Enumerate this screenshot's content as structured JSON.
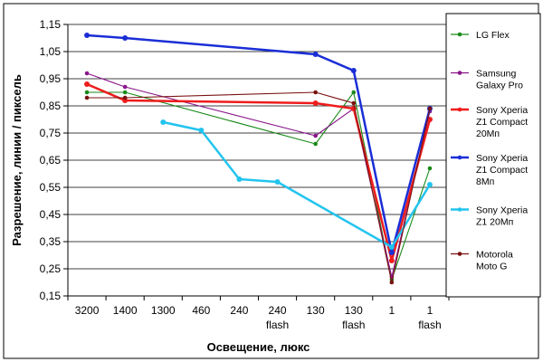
{
  "chart_data": {
    "type": "line",
    "title": "",
    "xlabel": "Освещение, люкс",
    "ylabel": "Разрешение, линии / пиксель",
    "categories": [
      [
        "3200"
      ],
      [
        "1400"
      ],
      [
        "1300"
      ],
      [
        "460"
      ],
      [
        "240"
      ],
      [
        "240",
        "flash"
      ],
      [
        "130"
      ],
      [
        "130",
        "flash"
      ],
      [
        "1"
      ],
      [
        "1",
        "flash"
      ]
    ],
    "ylim": [
      0.15,
      1.15
    ],
    "yticks": [
      "0,15",
      "0,25",
      "0,35",
      "0,45",
      "0,55",
      "0,65",
      "0,75",
      "0,85",
      "0,95",
      "1,05",
      "1,15"
    ],
    "grid": "horizontal",
    "legend_position": "right",
    "series": [
      {
        "name_lines": [
          "LG Flex"
        ],
        "color": "#1a8a1a",
        "values": [
          0.9,
          0.9,
          null,
          null,
          null,
          null,
          0.71,
          0.9,
          0.21,
          0.62
        ]
      },
      {
        "name_lines": [
          "Samsung",
          "Galaxy Pro"
        ],
        "color": "#8a158a",
        "values": [
          0.97,
          0.92,
          null,
          null,
          null,
          null,
          0.74,
          0.84,
          0.22,
          0.83
        ]
      },
      {
        "name_lines": [
          "Sony Xperia",
          "Z1 Compact",
          "20Мп"
        ],
        "color": "#ee1c1c",
        "values": [
          0.93,
          0.87,
          null,
          null,
          null,
          null,
          0.86,
          0.84,
          0.28,
          0.8
        ]
      },
      {
        "name_lines": [
          "Sony Xperia",
          "Z1 Compact",
          "8Мп"
        ],
        "color": "#1a2ed6",
        "values": [
          1.11,
          1.1,
          null,
          null,
          null,
          null,
          1.04,
          0.98,
          0.31,
          0.84
        ]
      },
      {
        "name_lines": [
          "Sony Xperia",
          "Z1 20Мп"
        ],
        "color": "#22c4ee",
        "values": [
          null,
          null,
          0.79,
          0.76,
          0.58,
          0.57,
          null,
          null,
          0.33,
          0.56
        ]
      },
      {
        "name_lines": [
          "Motorola",
          "Moto G"
        ],
        "color": "#7a1010",
        "values": [
          0.88,
          0.88,
          null,
          null,
          null,
          null,
          0.9,
          0.86,
          0.2,
          0.84
        ]
      }
    ]
  }
}
